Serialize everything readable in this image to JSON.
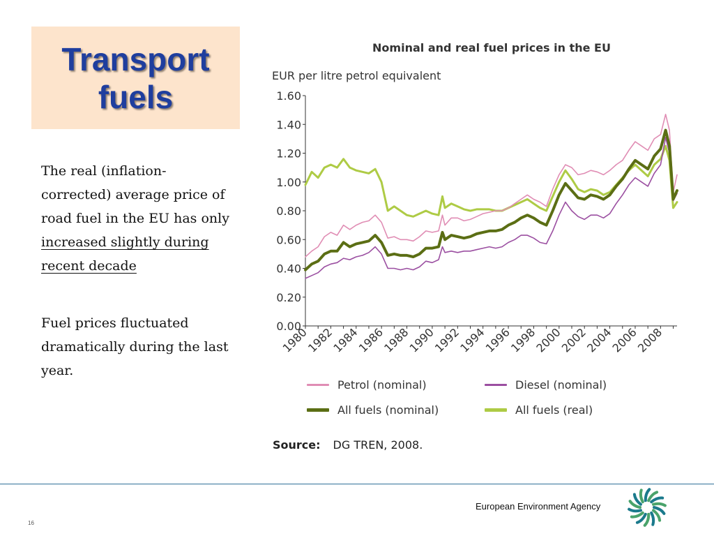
{
  "slide": {
    "title": "Transport\nfuels",
    "paragraph1_plain": "The real (inflation-corrected) average price of road fuel in the EU has only ",
    "paragraph1_underlined": "increased slightly during recent decade",
    "paragraph2": "Fuel prices fluctuated dramatically during the last year.",
    "footer_agency": "European Environment Agency",
    "page_number": "16"
  },
  "chart_data": {
    "type": "line",
    "title": "Nominal and real fuel prices in the EU",
    "ylabel": "EUR per litre petrol equivalent",
    "xlabel": "",
    "xlim": [
      1980,
      2009.3
    ],
    "ylim": [
      0,
      1.6
    ],
    "yticks": [
      "0.00",
      "0.20",
      "0.40",
      "0.60",
      "0.80",
      "1.00",
      "1.20",
      "1.40",
      "1.60"
    ],
    "xticks": [
      "1980",
      "1982",
      "1984",
      "1986",
      "1988",
      "1990",
      "1992",
      "1994",
      "1996",
      "1998",
      "2000",
      "2002",
      "2004",
      "2006",
      "2008"
    ],
    "grid": false,
    "legend_position": "bottom",
    "source_label": "Source:",
    "source_text": "DG TREN, 2008.",
    "series": [
      {
        "name": "Petrol (nominal)",
        "color": "#e08db4",
        "points": [
          [
            1980.0,
            0.48
          ],
          [
            1980.5,
            0.52
          ],
          [
            1981.0,
            0.55
          ],
          [
            1981.5,
            0.62
          ],
          [
            1982.0,
            0.65
          ],
          [
            1982.5,
            0.63
          ],
          [
            1983.0,
            0.7
          ],
          [
            1983.5,
            0.67
          ],
          [
            1984.0,
            0.7
          ],
          [
            1984.5,
            0.72
          ],
          [
            1985.0,
            0.73
          ],
          [
            1985.5,
            0.77
          ],
          [
            1986.0,
            0.72
          ],
          [
            1986.5,
            0.61
          ],
          [
            1987.0,
            0.62
          ],
          [
            1987.5,
            0.6
          ],
          [
            1988.0,
            0.6
          ],
          [
            1988.5,
            0.59
          ],
          [
            1989.0,
            0.62
          ],
          [
            1989.5,
            0.66
          ],
          [
            1990.0,
            0.65
          ],
          [
            1990.5,
            0.66
          ],
          [
            1990.8,
            0.77
          ],
          [
            1991.0,
            0.7
          ],
          [
            1991.5,
            0.75
          ],
          [
            1992.0,
            0.75
          ],
          [
            1992.5,
            0.73
          ],
          [
            1993.0,
            0.74
          ],
          [
            1993.5,
            0.76
          ],
          [
            1994.0,
            0.78
          ],
          [
            1994.5,
            0.79
          ],
          [
            1995.0,
            0.8
          ],
          [
            1995.5,
            0.8
          ],
          [
            1996.0,
            0.82
          ],
          [
            1996.5,
            0.85
          ],
          [
            1997.0,
            0.88
          ],
          [
            1997.5,
            0.91
          ],
          [
            1998.0,
            0.88
          ],
          [
            1998.5,
            0.86
          ],
          [
            1999.0,
            0.83
          ],
          [
            1999.5,
            0.95
          ],
          [
            2000.0,
            1.05
          ],
          [
            2000.5,
            1.12
          ],
          [
            2001.0,
            1.1
          ],
          [
            2001.5,
            1.05
          ],
          [
            2002.0,
            1.06
          ],
          [
            2002.5,
            1.08
          ],
          [
            2003.0,
            1.07
          ],
          [
            2003.5,
            1.05
          ],
          [
            2004.0,
            1.08
          ],
          [
            2004.5,
            1.12
          ],
          [
            2005.0,
            1.15
          ],
          [
            2005.5,
            1.22
          ],
          [
            2006.0,
            1.28
          ],
          [
            2006.5,
            1.25
          ],
          [
            2007.0,
            1.22
          ],
          [
            2007.5,
            1.3
          ],
          [
            2008.0,
            1.33
          ],
          [
            2008.4,
            1.47
          ],
          [
            2008.7,
            1.36
          ],
          [
            2009.0,
            0.93
          ],
          [
            2009.3,
            1.05
          ]
        ]
      },
      {
        "name": "Diesel (nominal)",
        "color": "#9b4fa1",
        "points": [
          [
            1980.0,
            0.33
          ],
          [
            1980.5,
            0.35
          ],
          [
            1981.0,
            0.37
          ],
          [
            1981.5,
            0.41
          ],
          [
            1982.0,
            0.43
          ],
          [
            1982.5,
            0.44
          ],
          [
            1983.0,
            0.47
          ],
          [
            1983.5,
            0.46
          ],
          [
            1984.0,
            0.48
          ],
          [
            1984.5,
            0.49
          ],
          [
            1985.0,
            0.51
          ],
          [
            1985.5,
            0.55
          ],
          [
            1986.0,
            0.5
          ],
          [
            1986.5,
            0.4
          ],
          [
            1987.0,
            0.4
          ],
          [
            1987.5,
            0.39
          ],
          [
            1988.0,
            0.4
          ],
          [
            1988.5,
            0.39
          ],
          [
            1989.0,
            0.41
          ],
          [
            1989.5,
            0.45
          ],
          [
            1990.0,
            0.44
          ],
          [
            1990.5,
            0.46
          ],
          [
            1990.8,
            0.55
          ],
          [
            1991.0,
            0.51
          ],
          [
            1991.5,
            0.52
          ],
          [
            1992.0,
            0.51
          ],
          [
            1992.5,
            0.52
          ],
          [
            1993.0,
            0.52
          ],
          [
            1993.5,
            0.53
          ],
          [
            1994.0,
            0.54
          ],
          [
            1994.5,
            0.55
          ],
          [
            1995.0,
            0.54
          ],
          [
            1995.5,
            0.55
          ],
          [
            1996.0,
            0.58
          ],
          [
            1996.5,
            0.6
          ],
          [
            1997.0,
            0.63
          ],
          [
            1997.5,
            0.63
          ],
          [
            1998.0,
            0.61
          ],
          [
            1998.5,
            0.58
          ],
          [
            1999.0,
            0.57
          ],
          [
            1999.5,
            0.66
          ],
          [
            2000.0,
            0.77
          ],
          [
            2000.5,
            0.86
          ],
          [
            2001.0,
            0.8
          ],
          [
            2001.5,
            0.76
          ],
          [
            2002.0,
            0.74
          ],
          [
            2002.5,
            0.77
          ],
          [
            2003.0,
            0.77
          ],
          [
            2003.5,
            0.75
          ],
          [
            2004.0,
            0.78
          ],
          [
            2004.5,
            0.85
          ],
          [
            2005.0,
            0.91
          ],
          [
            2005.5,
            0.98
          ],
          [
            2006.0,
            1.03
          ],
          [
            2006.5,
            1.0
          ],
          [
            2007.0,
            0.97
          ],
          [
            2007.5,
            1.06
          ],
          [
            2008.0,
            1.12
          ],
          [
            2008.4,
            1.31
          ],
          [
            2008.7,
            1.2
          ],
          [
            2009.0,
            0.87
          ],
          [
            2009.3,
            0.92
          ]
        ]
      },
      {
        "name": "All fuels (nominal)",
        "color": "#5b6e14",
        "points": [
          [
            1980.0,
            0.39
          ],
          [
            1980.5,
            0.43
          ],
          [
            1981.0,
            0.45
          ],
          [
            1981.5,
            0.5
          ],
          [
            1982.0,
            0.52
          ],
          [
            1982.5,
            0.52
          ],
          [
            1983.0,
            0.58
          ],
          [
            1983.5,
            0.55
          ],
          [
            1984.0,
            0.57
          ],
          [
            1984.5,
            0.58
          ],
          [
            1985.0,
            0.59
          ],
          [
            1985.5,
            0.63
          ],
          [
            1986.0,
            0.58
          ],
          [
            1986.5,
            0.49
          ],
          [
            1987.0,
            0.5
          ],
          [
            1987.5,
            0.49
          ],
          [
            1988.0,
            0.49
          ],
          [
            1988.5,
            0.48
          ],
          [
            1989.0,
            0.5
          ],
          [
            1989.5,
            0.54
          ],
          [
            1990.0,
            0.54
          ],
          [
            1990.5,
            0.55
          ],
          [
            1990.8,
            0.65
          ],
          [
            1991.0,
            0.6
          ],
          [
            1991.5,
            0.63
          ],
          [
            1992.0,
            0.62
          ],
          [
            1992.5,
            0.61
          ],
          [
            1993.0,
            0.62
          ],
          [
            1993.5,
            0.64
          ],
          [
            1994.0,
            0.65
          ],
          [
            1994.5,
            0.66
          ],
          [
            1995.0,
            0.66
          ],
          [
            1995.5,
            0.67
          ],
          [
            1996.0,
            0.7
          ],
          [
            1996.5,
            0.72
          ],
          [
            1997.0,
            0.75
          ],
          [
            1997.5,
            0.77
          ],
          [
            1998.0,
            0.75
          ],
          [
            1998.5,
            0.72
          ],
          [
            1999.0,
            0.7
          ],
          [
            1999.5,
            0.8
          ],
          [
            2000.0,
            0.91
          ],
          [
            2000.5,
            0.99
          ],
          [
            2001.0,
            0.94
          ],
          [
            2001.5,
            0.89
          ],
          [
            2002.0,
            0.88
          ],
          [
            2002.5,
            0.91
          ],
          [
            2003.0,
            0.9
          ],
          [
            2003.5,
            0.88
          ],
          [
            2004.0,
            0.91
          ],
          [
            2004.5,
            0.97
          ],
          [
            2005.0,
            1.02
          ],
          [
            2005.5,
            1.09
          ],
          [
            2006.0,
            1.15
          ],
          [
            2006.5,
            1.12
          ],
          [
            2007.0,
            1.09
          ],
          [
            2007.5,
            1.18
          ],
          [
            2008.0,
            1.23
          ],
          [
            2008.4,
            1.36
          ],
          [
            2008.7,
            1.25
          ],
          [
            2009.0,
            0.88
          ],
          [
            2009.3,
            0.94
          ]
        ]
      },
      {
        "name": "All fuels (real)",
        "color": "#aecb45",
        "points": [
          [
            1980.0,
            0.98
          ],
          [
            1980.5,
            1.07
          ],
          [
            1981.0,
            1.03
          ],
          [
            1981.5,
            1.1
          ],
          [
            1982.0,
            1.12
          ],
          [
            1982.5,
            1.1
          ],
          [
            1983.0,
            1.16
          ],
          [
            1983.5,
            1.1
          ],
          [
            1984.0,
            1.08
          ],
          [
            1984.5,
            1.07
          ],
          [
            1985.0,
            1.06
          ],
          [
            1985.5,
            1.09
          ],
          [
            1986.0,
            1.0
          ],
          [
            1986.5,
            0.8
          ],
          [
            1987.0,
            0.83
          ],
          [
            1987.5,
            0.8
          ],
          [
            1988.0,
            0.77
          ],
          [
            1988.5,
            0.76
          ],
          [
            1989.0,
            0.78
          ],
          [
            1989.5,
            0.8
          ],
          [
            1990.0,
            0.78
          ],
          [
            1990.5,
            0.77
          ],
          [
            1990.8,
            0.9
          ],
          [
            1991.0,
            0.82
          ],
          [
            1991.5,
            0.85
          ],
          [
            1992.0,
            0.83
          ],
          [
            1992.5,
            0.81
          ],
          [
            1993.0,
            0.8
          ],
          [
            1993.5,
            0.81
          ],
          [
            1994.0,
            0.81
          ],
          [
            1994.5,
            0.81
          ],
          [
            1995.0,
            0.8
          ],
          [
            1995.5,
            0.8
          ],
          [
            1996.0,
            0.82
          ],
          [
            1996.5,
            0.84
          ],
          [
            1997.0,
            0.86
          ],
          [
            1997.5,
            0.88
          ],
          [
            1998.0,
            0.85
          ],
          [
            1998.5,
            0.82
          ],
          [
            1999.0,
            0.8
          ],
          [
            1999.5,
            0.9
          ],
          [
            2000.0,
            1.0
          ],
          [
            2000.5,
            1.08
          ],
          [
            2001.0,
            1.02
          ],
          [
            2001.5,
            0.95
          ],
          [
            2002.0,
            0.93
          ],
          [
            2002.5,
            0.95
          ],
          [
            2003.0,
            0.94
          ],
          [
            2003.5,
            0.91
          ],
          [
            2004.0,
            0.93
          ],
          [
            2004.5,
            0.98
          ],
          [
            2005.0,
            1.03
          ],
          [
            2005.5,
            1.08
          ],
          [
            2006.0,
            1.12
          ],
          [
            2006.5,
            1.08
          ],
          [
            2007.0,
            1.04
          ],
          [
            2007.5,
            1.12
          ],
          [
            2008.0,
            1.16
          ],
          [
            2008.4,
            1.25
          ],
          [
            2008.7,
            1.15
          ],
          [
            2009.0,
            0.82
          ],
          [
            2009.3,
            0.86
          ]
        ]
      }
    ]
  }
}
